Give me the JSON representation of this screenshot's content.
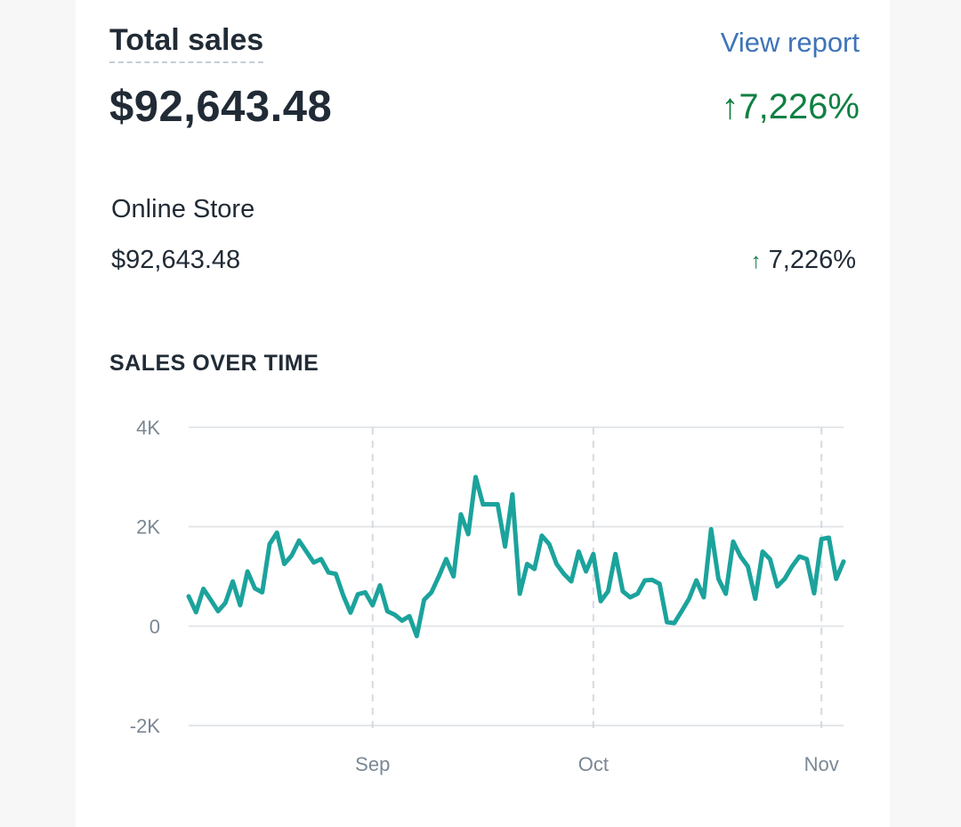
{
  "header": {
    "title": "Total sales",
    "view_report_label": "View report",
    "total_value": "$92,643.48",
    "growth_arrow": "↑",
    "growth_value": "7,226%"
  },
  "breakdown": {
    "channel": "Online Store",
    "amount": "$92,643.48",
    "growth_arrow": "↑",
    "growth_value": "7,226%"
  },
  "chart_title": "SALES OVER TIME",
  "colors": {
    "line": "#1ba39c",
    "positive": "#108043",
    "link": "#3f74b8",
    "grid": "#e4e7ea"
  },
  "chart_data": {
    "type": "line",
    "title": "SALES OVER TIME",
    "xlabel": "",
    "ylabel": "",
    "ylim": [
      -2000,
      4000
    ],
    "yticks": [
      4000,
      2000,
      0,
      -2000
    ],
    "ytick_labels": [
      "4K",
      "2K",
      "0",
      "-2K"
    ],
    "xticks": [
      {
        "label": "Sep",
        "x": 25
      },
      {
        "label": "Oct",
        "x": 55
      },
      {
        "label": "Nov",
        "x": 86
      }
    ],
    "xlim": [
      0,
      89
    ],
    "grid": true,
    "series": [
      {
        "values": [
          600,
          280,
          750,
          530,
          300,
          470,
          900,
          420,
          1100,
          760,
          680,
          1650,
          1880,
          1250,
          1420,
          1720,
          1500,
          1280,
          1350,
          1080,
          1050,
          620,
          270,
          640,
          680,
          420,
          820,
          300,
          230,
          110,
          200,
          -200,
          530,
          680,
          1000,
          1350,
          1000,
          2250,
          1850,
          3000,
          2450,
          2450,
          2450,
          1600,
          2650,
          650,
          1250,
          1150,
          1820,
          1650,
          1250,
          1050,
          900,
          1500,
          1100,
          1450,
          500,
          700,
          1450,
          700,
          580,
          650,
          920,
          930,
          850,
          80,
          60,
          300,
          550,
          920,
          580,
          1950,
          950,
          650,
          1700,
          1400,
          1200,
          550,
          1500,
          1350,
          800,
          950,
          1200,
          1400,
          1350,
          660,
          1750,
          1780,
          950,
          1300
        ]
      }
    ]
  }
}
